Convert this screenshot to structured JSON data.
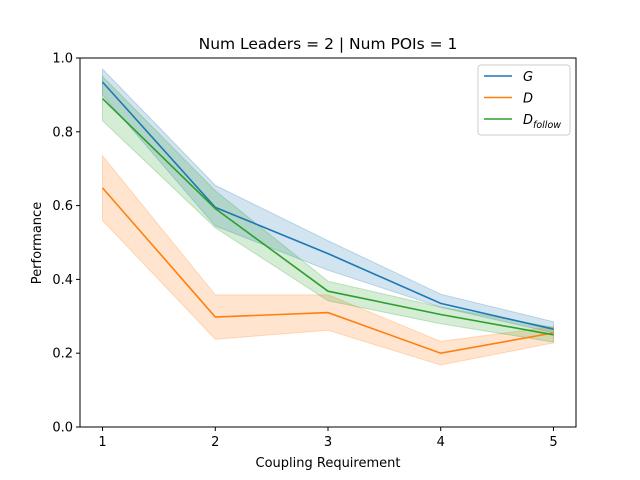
{
  "chart_data": {
    "type": "line",
    "title": "Num Leaders = 2 | Num POIs = 1",
    "xlabel": "Coupling Requirement",
    "ylabel": "Performance",
    "x": [
      1,
      2,
      3,
      4,
      5
    ],
    "xticks": [
      "1",
      "2",
      "3",
      "4",
      "5"
    ],
    "yticks": [
      "0.0",
      "0.2",
      "0.4",
      "0.6",
      "0.8",
      "1.0"
    ],
    "xlim": [
      0.8,
      5.2
    ],
    "ylim": [
      0.0,
      1.0
    ],
    "grid": false,
    "legend_position": "top-right",
    "series": [
      {
        "name": "G",
        "name_subscript": "",
        "color": "#1f77b4",
        "values": [
          0.935,
          0.595,
          0.47,
          0.335,
          0.265
        ],
        "lower": [
          0.9,
          0.545,
          0.425,
          0.325,
          0.255
        ],
        "upper": [
          0.97,
          0.655,
          0.505,
          0.36,
          0.285
        ]
      },
      {
        "name": "D",
        "name_subscript": "",
        "color": "#ff7f0e",
        "values": [
          0.648,
          0.298,
          0.31,
          0.2,
          0.255
        ],
        "lower": [
          0.56,
          0.238,
          0.262,
          0.168,
          0.228
        ],
        "upper": [
          0.735,
          0.358,
          0.358,
          0.232,
          0.272
        ]
      },
      {
        "name": "D",
        "name_subscript": "follow",
        "color": "#2ca02c",
        "values": [
          0.89,
          0.592,
          0.368,
          0.305,
          0.25
        ],
        "lower": [
          0.83,
          0.54,
          0.342,
          0.28,
          0.23
        ],
        "upper": [
          0.95,
          0.64,
          0.395,
          0.325,
          0.27
        ]
      }
    ]
  }
}
